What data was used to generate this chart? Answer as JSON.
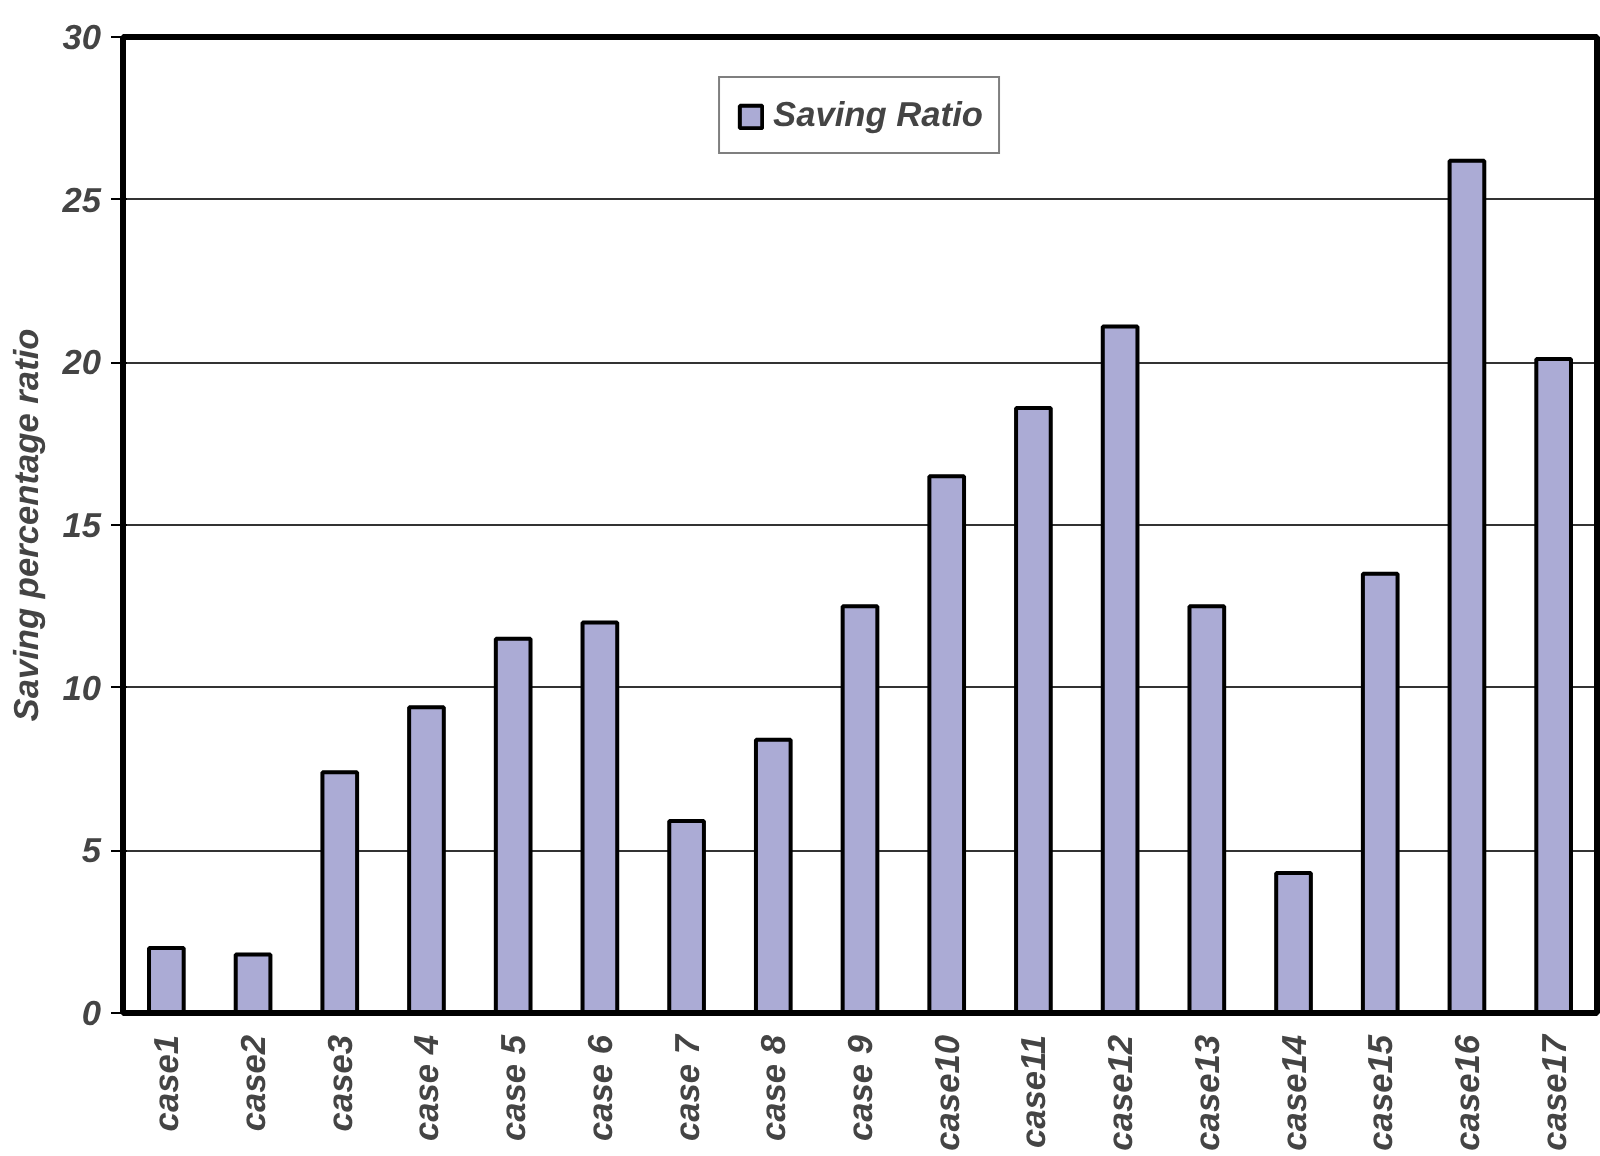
{
  "chart_data": {
    "type": "bar",
    "ylabel": "Saving percentage ratio",
    "categories": [
      "case1",
      "case2",
      "case3",
      "case 4",
      "case 5",
      "case 6",
      "case 7",
      "case 8",
      "case 9",
      "case10",
      "case11",
      "case12",
      "case13",
      "case14",
      "case15",
      "case16",
      "case17"
    ],
    "series": [
      {
        "name": "Saving Ratio",
        "color": "#ababd5",
        "values": [
          2.0,
          1.8,
          7.4,
          9.4,
          11.5,
          12.0,
          5.9,
          8.4,
          12.5,
          16.5,
          18.6,
          21.1,
          12.5,
          4.3,
          13.5,
          26.2,
          20.1
        ]
      }
    ],
    "ylim": [
      0,
      30
    ],
    "yticks": [
      0,
      5,
      10,
      15,
      20,
      25,
      30
    ],
    "grid": "y",
    "legend": "top"
  }
}
